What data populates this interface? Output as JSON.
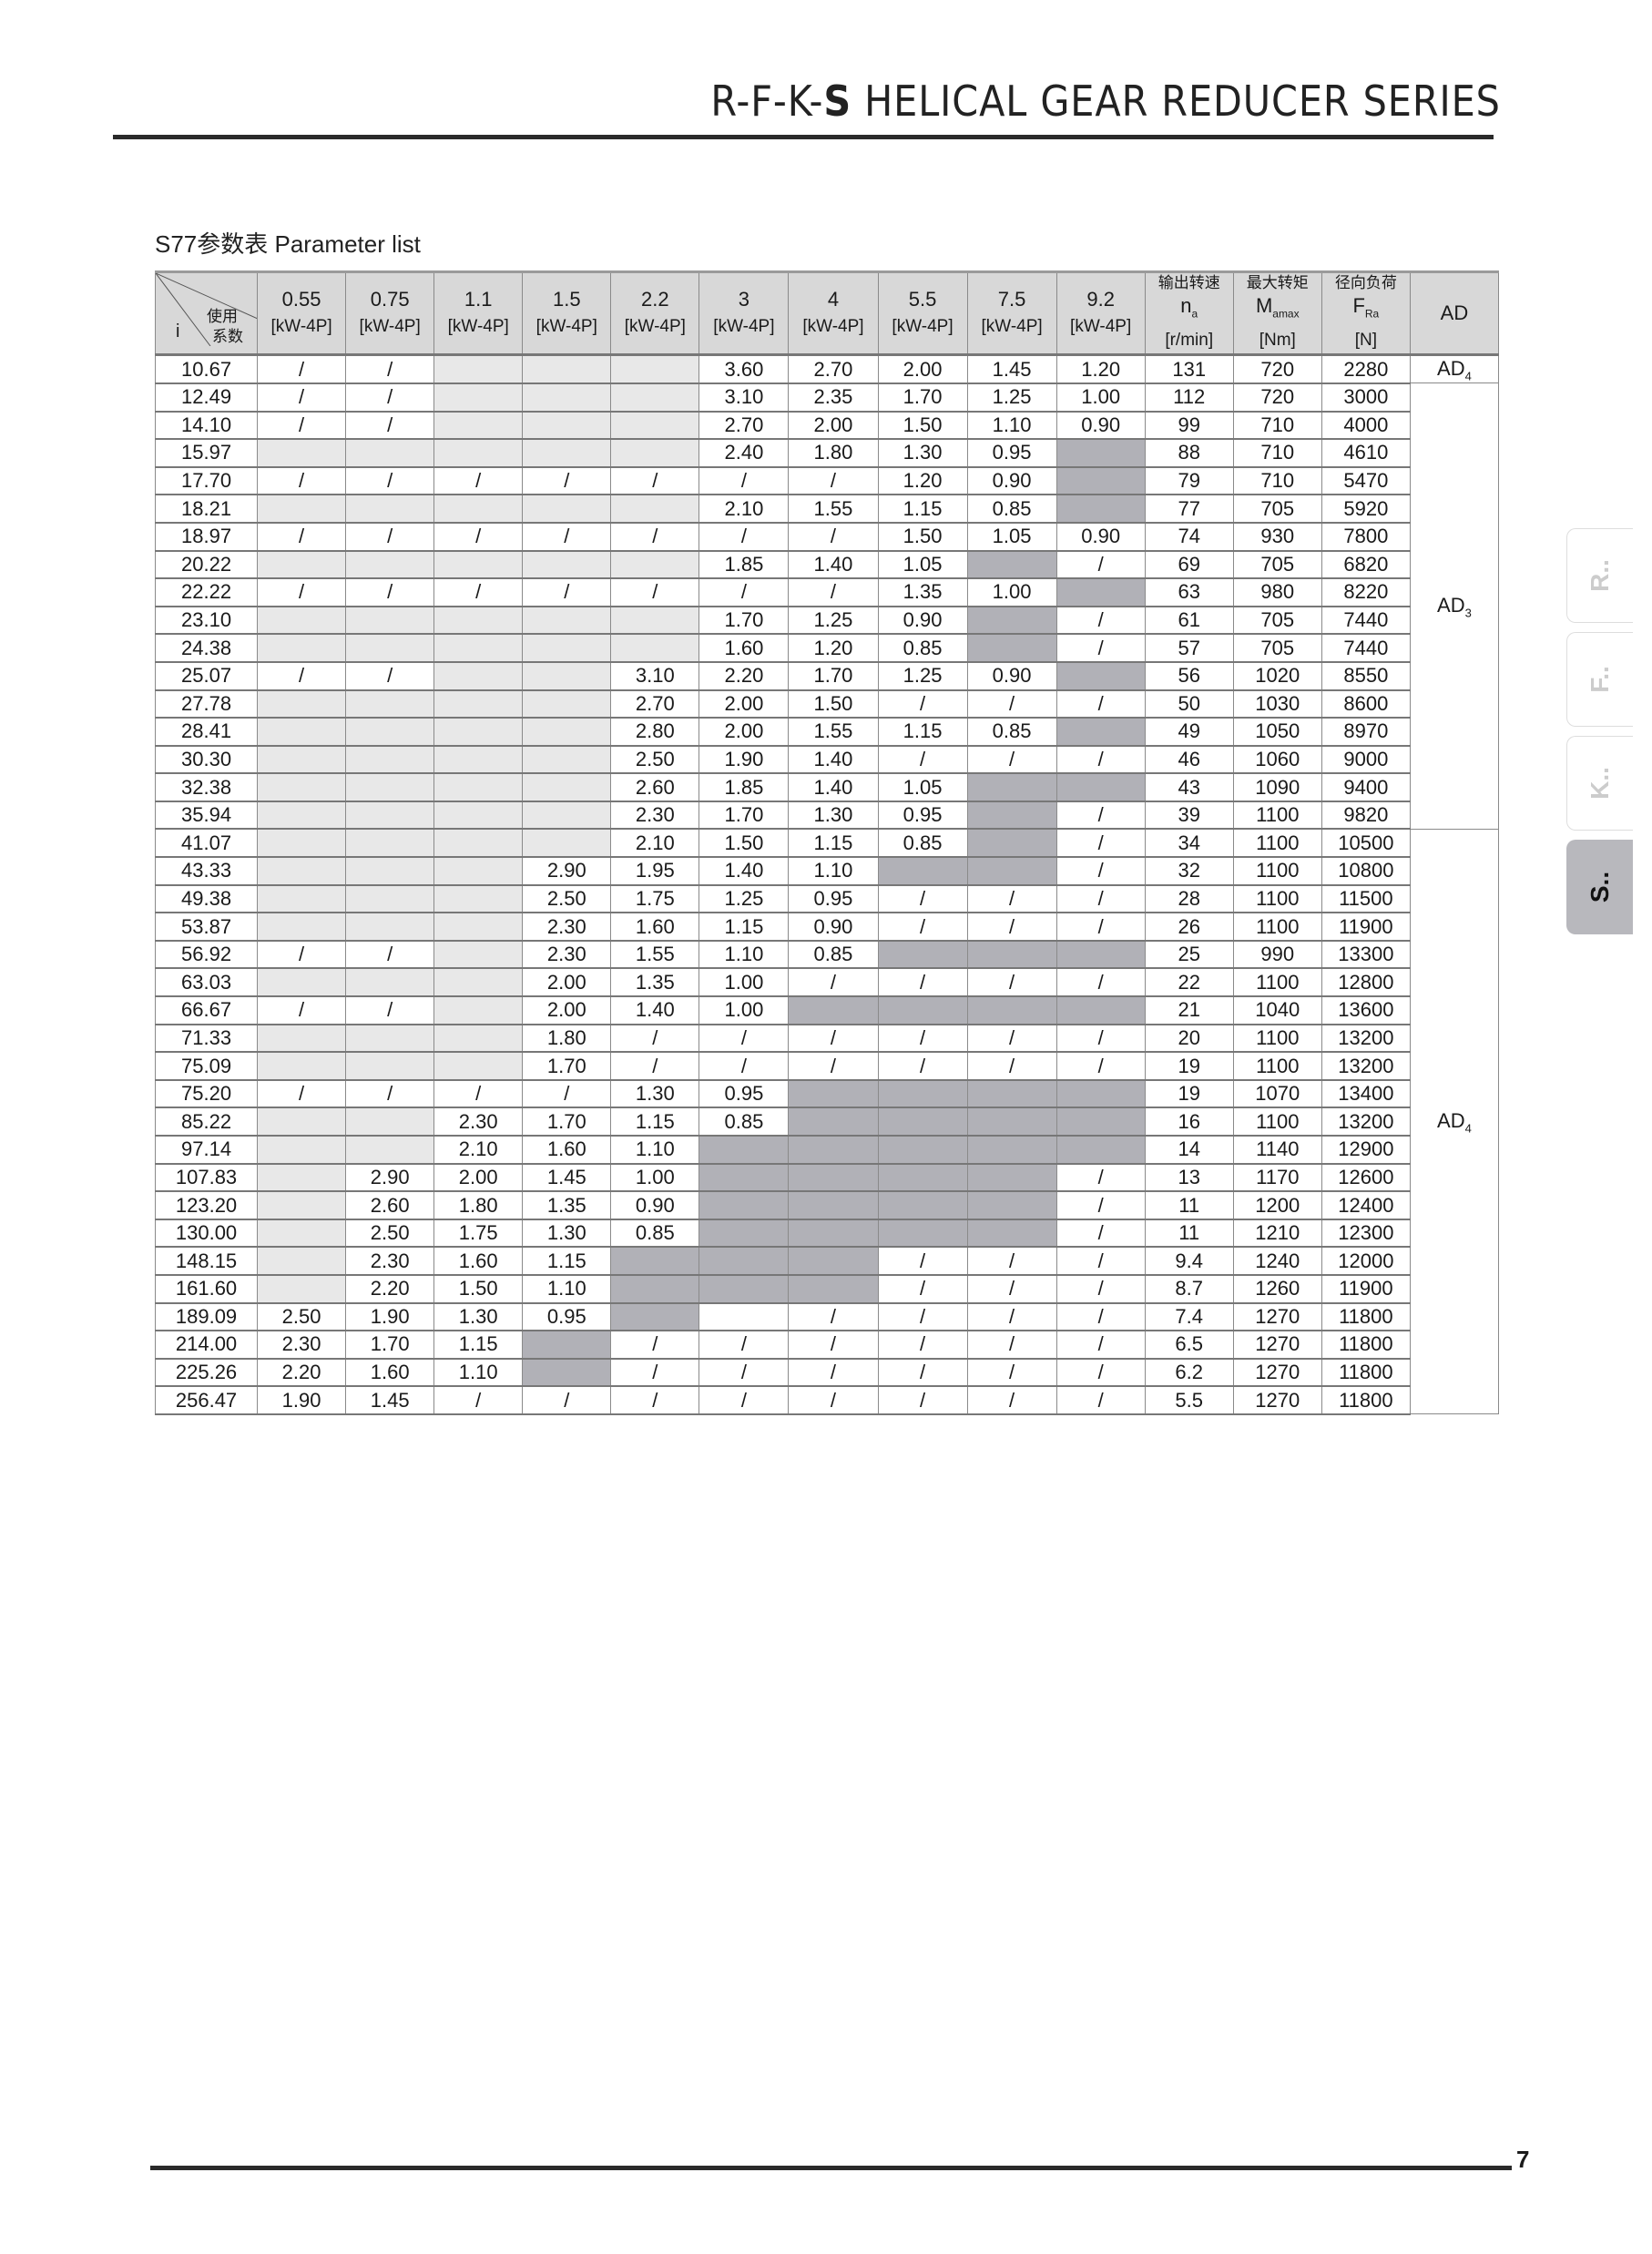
{
  "header": {
    "title_prefix": "R-F-K-",
    "title_bold": "S",
    "title_suffix": " HELICAL GEAR REDUCER SERIES"
  },
  "subtitle": "S77参数表 Parameter list",
  "side_tabs": [
    {
      "label": "R..",
      "active": false
    },
    {
      "label": "F..",
      "active": false
    },
    {
      "label": "K..",
      "active": false
    },
    {
      "label": "S..",
      "active": true
    }
  ],
  "table": {
    "corner": {
      "top": "使用",
      "bottom": "系数",
      "left": "i"
    },
    "power_columns": [
      {
        "value": "0.55",
        "unit": "[kW-4P]"
      },
      {
        "value": "0.75",
        "unit": "[kW-4P]"
      },
      {
        "value": "1.1",
        "unit": "[kW-4P]"
      },
      {
        "value": "1.5",
        "unit": "[kW-4P]"
      },
      {
        "value": "2.2",
        "unit": "[kW-4P]"
      },
      {
        "value": "3",
        "unit": "[kW-4P]"
      },
      {
        "value": "4",
        "unit": "[kW-4P]"
      },
      {
        "value": "5.5",
        "unit": "[kW-4P]"
      },
      {
        "value": "7.5",
        "unit": "[kW-4P]"
      },
      {
        "value": "9.2",
        "unit": "[kW-4P]"
      }
    ],
    "extra_columns": [
      {
        "cn": "输出转速",
        "sym": "n",
        "sub": "a",
        "unit": "[r/min]"
      },
      {
        "cn": "最大转矩",
        "sym": "M",
        "sub": "amax",
        "unit": "[Nm]"
      },
      {
        "cn": "径向负荷",
        "sym": "F",
        "sub": "Ra",
        "unit": "[N]"
      }
    ],
    "ad_header": "AD",
    "cell_fills": {
      "light": "#e8e8e8",
      "dark": "#b1b1b7",
      "header": "#d8d8d8"
    },
    "rows": [
      {
        "i": "10.67",
        "c": [
          "/",
          "/",
          "light",
          "light",
          "light",
          "3.60",
          "2.70",
          "2.00",
          "1.45",
          "1.20"
        ],
        "na": "131",
        "m": "720",
        "f": "2280"
      },
      {
        "i": "12.49",
        "c": [
          "/",
          "/",
          "light",
          "light",
          "light",
          "3.10",
          "2.35",
          "1.70",
          "1.25",
          "1.00"
        ],
        "na": "112",
        "m": "720",
        "f": "3000"
      },
      {
        "i": "14.10",
        "c": [
          "/",
          "/",
          "light",
          "light",
          "light",
          "2.70",
          "2.00",
          "1.50",
          "1.10",
          "0.90"
        ],
        "na": "99",
        "m": "710",
        "f": "4000"
      },
      {
        "i": "15.97",
        "c": [
          "light",
          "light",
          "light",
          "light",
          "light",
          "2.40",
          "1.80",
          "1.30",
          "0.95",
          "dark"
        ],
        "na": "88",
        "m": "710",
        "f": "4610"
      },
      {
        "i": "17.70",
        "c": [
          "/",
          "/",
          "/",
          "/",
          "/",
          "/",
          "/",
          "1.20",
          "0.90",
          "dark"
        ],
        "na": "79",
        "m": "710",
        "f": "5470"
      },
      {
        "i": "18.21",
        "c": [
          "light",
          "light",
          "light",
          "light",
          "light",
          "2.10",
          "1.55",
          "1.15",
          "0.85",
          "dark"
        ],
        "na": "77",
        "m": "705",
        "f": "5920"
      },
      {
        "i": "18.97",
        "c": [
          "/",
          "/",
          "/",
          "/",
          "/",
          "/",
          "/",
          "1.50",
          "1.05",
          "0.90"
        ],
        "na": "74",
        "m": "930",
        "f": "7800"
      },
      {
        "i": "20.22",
        "c": [
          "light",
          "light",
          "light",
          "light",
          "light",
          "1.85",
          "1.40",
          "1.05",
          "dark",
          "/"
        ],
        "na": "69",
        "m": "705",
        "f": "6820"
      },
      {
        "i": "22.22",
        "c": [
          "/",
          "/",
          "/",
          "/",
          "/",
          "/",
          "/",
          "1.35",
          "1.00",
          "dark"
        ],
        "na": "63",
        "m": "980",
        "f": "8220"
      },
      {
        "i": "23.10",
        "c": [
          "light",
          "light",
          "light",
          "light",
          "light",
          "1.70",
          "1.25",
          "0.90",
          "dark",
          "/"
        ],
        "na": "61",
        "m": "705",
        "f": "7440"
      },
      {
        "i": "24.38",
        "c": [
          "light",
          "light",
          "light",
          "light",
          "light",
          "1.60",
          "1.20",
          "0.85",
          "dark",
          "/"
        ],
        "na": "57",
        "m": "705",
        "f": "7440"
      },
      {
        "i": "25.07",
        "c": [
          "/",
          "/",
          "light",
          "light",
          "3.10",
          "2.20",
          "1.70",
          "1.25",
          "0.90",
          "dark"
        ],
        "na": "56",
        "m": "1020",
        "f": "8550"
      },
      {
        "i": "27.78",
        "c": [
          "light",
          "light",
          "light",
          "light",
          "2.70",
          "2.00",
          "1.50",
          "/",
          "/",
          "/"
        ],
        "na": "50",
        "m": "1030",
        "f": "8600"
      },
      {
        "i": "28.41",
        "c": [
          "light",
          "light",
          "light",
          "light",
          "2.80",
          "2.00",
          "1.55",
          "1.15",
          "0.85",
          "dark"
        ],
        "na": "49",
        "m": "1050",
        "f": "8970"
      },
      {
        "i": "30.30",
        "c": [
          "light",
          "light",
          "light",
          "light",
          "2.50",
          "1.90",
          "1.40",
          "/",
          "/",
          "/"
        ],
        "na": "46",
        "m": "1060",
        "f": "9000"
      },
      {
        "i": "32.38",
        "c": [
          "light",
          "light",
          "light",
          "light",
          "2.60",
          "1.85",
          "1.40",
          "1.05",
          "dark",
          "dark"
        ],
        "na": "43",
        "m": "1090",
        "f": "9400"
      },
      {
        "i": "35.94",
        "c": [
          "light",
          "light",
          "light",
          "light",
          "2.30",
          "1.70",
          "1.30",
          "0.95",
          "dark",
          "/"
        ],
        "na": "39",
        "m": "1100",
        "f": "9820"
      },
      {
        "i": "41.07",
        "c": [
          "light",
          "light",
          "light",
          "light",
          "2.10",
          "1.50",
          "1.15",
          "0.85",
          "dark",
          "/"
        ],
        "na": "34",
        "m": "1100",
        "f": "10500"
      },
      {
        "i": "43.33",
        "c": [
          "light",
          "light",
          "light",
          "2.90",
          "1.95",
          "1.40",
          "1.10",
          "dark",
          "dark",
          "/"
        ],
        "na": "32",
        "m": "1100",
        "f": "10800"
      },
      {
        "i": "49.38",
        "c": [
          "light",
          "light",
          "light",
          "2.50",
          "1.75",
          "1.25",
          "0.95",
          "/",
          "/",
          "/"
        ],
        "na": "28",
        "m": "1100",
        "f": "11500"
      },
      {
        "i": "53.87",
        "c": [
          "light",
          "light",
          "light",
          "2.30",
          "1.60",
          "1.15",
          "0.90",
          "/",
          "/",
          "/"
        ],
        "na": "26",
        "m": "1100",
        "f": "11900"
      },
      {
        "i": "56.92",
        "c": [
          "/",
          "/",
          "light",
          "2.30",
          "1.55",
          "1.10",
          "0.85",
          "dark",
          "dark",
          "dark"
        ],
        "na": "25",
        "m": "990",
        "f": "13300"
      },
      {
        "i": "63.03",
        "c": [
          "light",
          "light",
          "light",
          "2.00",
          "1.35",
          "1.00",
          "/",
          "/",
          "/",
          "/"
        ],
        "na": "22",
        "m": "1100",
        "f": "12800"
      },
      {
        "i": "66.67",
        "c": [
          "/",
          "/",
          "light",
          "2.00",
          "1.40",
          "1.00",
          "dark",
          "dark",
          "dark",
          "dark"
        ],
        "na": "21",
        "m": "1040",
        "f": "13600"
      },
      {
        "i": "71.33",
        "c": [
          "light",
          "light",
          "light",
          "1.80",
          "/",
          "/",
          "/",
          "/",
          "/",
          "/"
        ],
        "na": "20",
        "m": "1100",
        "f": "13200"
      },
      {
        "i": "75.09",
        "c": [
          "light",
          "light",
          "light",
          "1.70",
          "/",
          "/",
          "/",
          "/",
          "/",
          "/"
        ],
        "na": "19",
        "m": "1100",
        "f": "13200"
      },
      {
        "i": "75.20",
        "c": [
          "/",
          "/",
          "/",
          "/",
          "1.30",
          "0.95",
          "dark",
          "dark",
          "dark",
          "dark"
        ],
        "na": "19",
        "m": "1070",
        "f": "13400"
      },
      {
        "i": "85.22",
        "c": [
          "light",
          "light",
          "2.30",
          "1.70",
          "1.15",
          "0.85",
          "dark",
          "dark",
          "dark",
          "dark"
        ],
        "na": "16",
        "m": "1100",
        "f": "13200"
      },
      {
        "i": "97.14",
        "c": [
          "light",
          "light",
          "2.10",
          "1.60",
          "1.10",
          "dark",
          "dark",
          "dark",
          "dark",
          "dark"
        ],
        "na": "14",
        "m": "1140",
        "f": "12900"
      },
      {
        "i": "107.83",
        "c": [
          "light",
          "2.90",
          "2.00",
          "1.45",
          "1.00",
          "dark",
          "dark",
          "dark",
          "dark",
          "/"
        ],
        "na": "13",
        "m": "1170",
        "f": "12600"
      },
      {
        "i": "123.20",
        "c": [
          "light",
          "2.60",
          "1.80",
          "1.35",
          "0.90",
          "dark",
          "dark",
          "dark",
          "dark",
          "/"
        ],
        "na": "11",
        "m": "1200",
        "f": "12400"
      },
      {
        "i": "130.00",
        "c": [
          "light",
          "2.50",
          "1.75",
          "1.30",
          "0.85",
          "dark",
          "dark",
          "dark",
          "dark",
          "/"
        ],
        "na": "11",
        "m": "1210",
        "f": "12300"
      },
      {
        "i": "148.15",
        "c": [
          "light",
          "2.30",
          "1.60",
          "1.15",
          "dark",
          "dark",
          "dark",
          "/",
          "/",
          "/"
        ],
        "na": "9.4",
        "m": "1240",
        "f": "12000"
      },
      {
        "i": "161.60",
        "c": [
          "light",
          "2.20",
          "1.50",
          "1.10",
          "dark",
          "dark",
          "dark",
          "/",
          "/",
          "/"
        ],
        "na": "8.7",
        "m": "1260",
        "f": "11900"
      },
      {
        "i": "189.09",
        "c": [
          "2.50",
          "1.90",
          "1.30",
          "0.95",
          "dark",
          "",
          "/",
          "/",
          "/",
          "/"
        ],
        "na": "7.4",
        "m": "1270",
        "f": "11800"
      },
      {
        "i": "214.00",
        "c": [
          "2.30",
          "1.70",
          "1.15",
          "dark",
          "/",
          "/",
          "/",
          "/",
          "/",
          "/"
        ],
        "na": "6.5",
        "m": "1270",
        "f": "11800"
      },
      {
        "i": "225.26",
        "c": [
          "2.20",
          "1.60",
          "1.10",
          "dark",
          "/",
          "/",
          "/",
          "/",
          "/",
          "/"
        ],
        "na": "6.2",
        "m": "1270",
        "f": "11800"
      },
      {
        "i": "256.47",
        "c": [
          "1.90",
          "1.45",
          "/",
          "/",
          "/",
          "/",
          "/",
          "/",
          "/",
          "/"
        ],
        "na": "5.5",
        "m": "1270",
        "f": "11800"
      }
    ],
    "ad_groups": [
      {
        "label": "AD",
        "sub": "4",
        "span": 1
      },
      {
        "label": "AD",
        "sub": "3",
        "span": 16
      },
      {
        "label": "AD",
        "sub": "4",
        "span": 21
      }
    ]
  },
  "footer": {
    "page_number": "7"
  }
}
